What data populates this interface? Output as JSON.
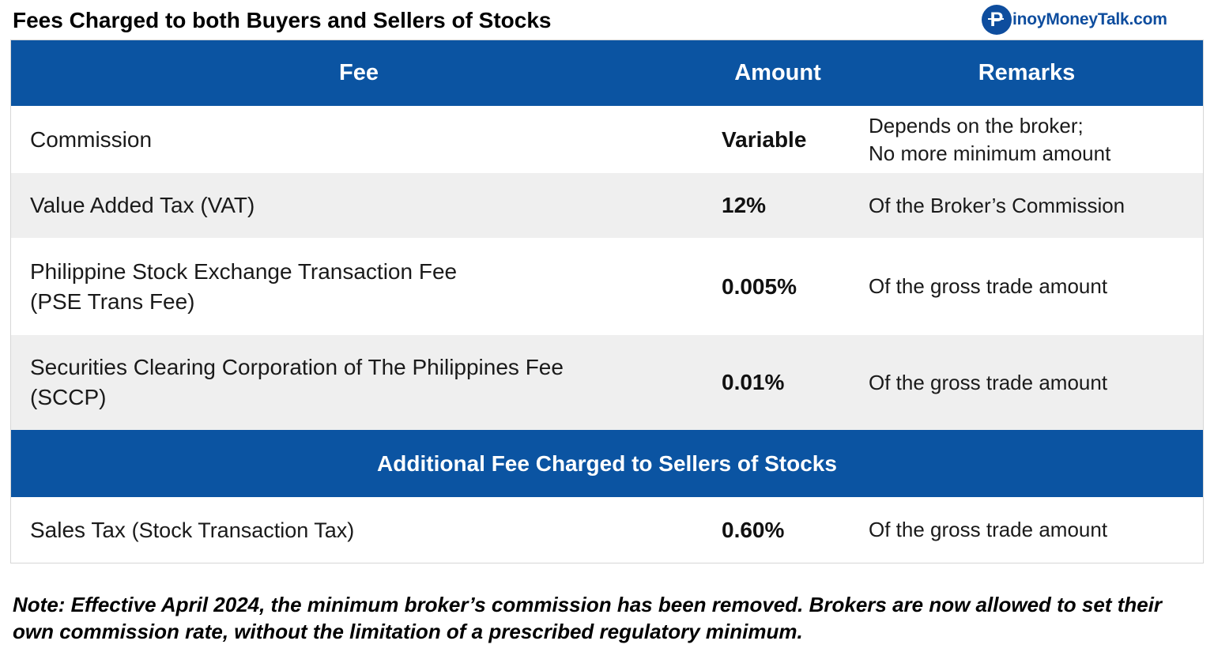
{
  "title": "Fees Charged to both Buyers and Sellers of Stocks",
  "brand": {
    "logo_glyph": "P",
    "text": "inoyMoneyTalk.com",
    "color": "#0e4d9e"
  },
  "table": {
    "header": {
      "fee": "Fee",
      "amount": "Amount",
      "remarks": "Remarks"
    },
    "rows": [
      {
        "fee_line1": "Commission",
        "fee_line2": "",
        "amount": "Variable",
        "remarks_line1": "Depends on the broker;",
        "remarks_line2": "No more minimum amount"
      },
      {
        "fee_line1": "Value Added Tax (VAT)",
        "fee_line2": "",
        "amount": "12%",
        "remarks_line1": "Of the Broker’s Commission",
        "remarks_line2": ""
      },
      {
        "fee_line1": "Philippine Stock Exchange Transaction Fee",
        "fee_line2": "(PSE Trans Fee)",
        "amount": "0.005%",
        "remarks_line1": "Of the gross trade amount",
        "remarks_line2": ""
      },
      {
        "fee_line1": "Securities Clearing Corporation of The Philippines Fee",
        "fee_line2": "(SCCP)",
        "amount": "0.01%",
        "remarks_line1": "Of the gross trade amount",
        "remarks_line2": ""
      }
    ],
    "section_header": "Additional Fee Charged to Sellers of Stocks",
    "seller_rows": [
      {
        "fee_main": "Sales Tax",
        "fee_sub": "(Stock Transaction Tax)",
        "amount": "0.60%",
        "remarks": "Of the gross trade amount"
      }
    ],
    "colors": {
      "header_bg": "#0b54a2",
      "alt_row_bg": "#efefef"
    }
  },
  "note": "Note: Effective April 2024, the minimum broker’s commission has been removed. Brokers are now allowed to set their own commission rate, without the limitation of a prescribed regulatory minimum."
}
